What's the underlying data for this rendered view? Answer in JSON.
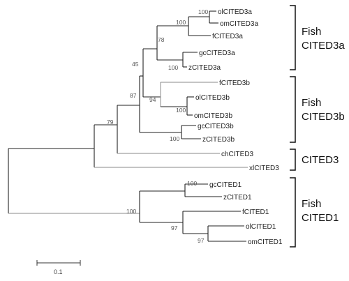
{
  "leaves": {
    "olCITED3a": "olCITED3a",
    "omCITED3a": "omCITED3a",
    "fCITED3a": "fCITED3a",
    "gcCITED3a": "gcCITED3a",
    "zCITED3a": "zCITED3a",
    "fCITED3b": "fCITED3b",
    "olCITED3b": "olCITED3b",
    "omCITED3b": "omCITED3b",
    "gcCITED3b": "gcCITED3b",
    "zCITED3b": "zCITED3b",
    "chCITED3": "chCITED3",
    "xlCITED3": "xlCITED3",
    "gcCITED1": "gcCITED1",
    "zCITED1": "zCITED1",
    "fCITED1": "fCITED1",
    "olCITED1": "olCITED1",
    "omCITED1": "omCITED1"
  },
  "bootstrap": {
    "b1": "100",
    "b2": "100",
    "b3": "78",
    "b4": "100",
    "b5": "45",
    "b6": "87",
    "b7": "94",
    "b8": "100",
    "b9": "100",
    "b10": "79",
    "b11": "100",
    "b12": "100",
    "b13": "97",
    "b14": "97"
  },
  "groups": {
    "g1_line1": "Fish",
    "g1_line2": "CITED3a",
    "g2_line1": "Fish",
    "g2_line2": "CITED3b",
    "g3": "CITED3",
    "g4_line1": "Fish",
    "g4_line2": "CITED1"
  },
  "scale_bar": {
    "label": "0.1"
  }
}
